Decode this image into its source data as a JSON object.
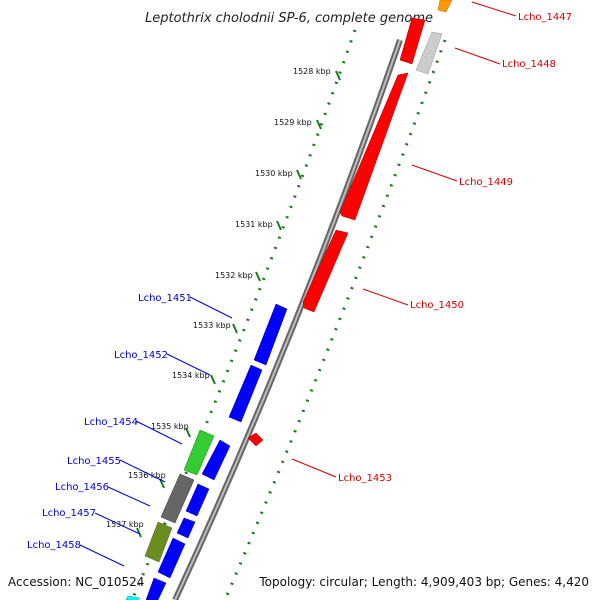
{
  "title": "Leptothrix cholodnii SP-6, complete genome",
  "footer": {
    "accession": "Accession: NC_010524",
    "topology": "Topology: circular; Length: 4,909,403 bp; Genes: 4,420"
  },
  "colors": {
    "forward_cds": "#ff0000",
    "reverse_cds": "#0000ff",
    "backbone": "#888888",
    "tick_track": "#1a7a1a",
    "rrna": "#33cc33",
    "pseudo": "#666666",
    "olive": "#6b8e23",
    "trna": "#ff9900",
    "misc": "#cccccc"
  },
  "kbp_ticks": [
    "1528 kbp",
    "1529 kbp",
    "1530 kbp",
    "1531 kbp",
    "1532 kbp",
    "1533 kbp",
    "1534 kbp",
    "1535 kbp",
    "1536 kbp",
    "1537 kbp"
  ],
  "forward_labels": [
    "Lcho_1447",
    "Lcho_1448",
    "Lcho_1449",
    "Lcho_1450",
    "Lcho_1453"
  ],
  "reverse_labels": [
    "Lcho_1451",
    "Lcho_1452",
    "Lcho_1454",
    "Lcho_1455",
    "Lcho_1456",
    "Lcho_1457",
    "Lcho_1458"
  ]
}
